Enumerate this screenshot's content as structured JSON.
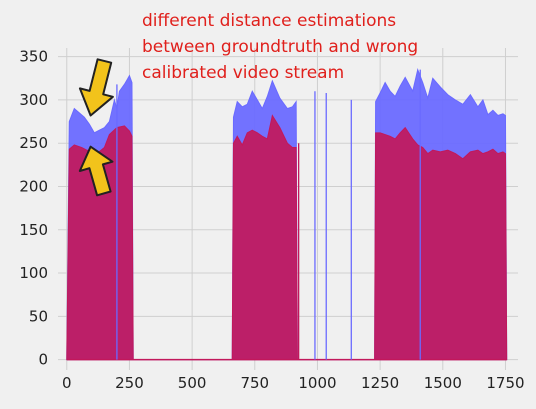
{
  "chart_data": {
    "type": "area",
    "title": "",
    "xlabel": "",
    "ylabel": "",
    "xlim": [
      -35,
      1800
    ],
    "ylim": [
      -12,
      360
    ],
    "xticks": [
      0,
      250,
      500,
      750,
      1000,
      1250,
      1500,
      1750
    ],
    "yticks": [
      0,
      50,
      100,
      150,
      200,
      250,
      300,
      350
    ],
    "grid": true,
    "legend": "none",
    "annotation": [
      "different distance estimations",
      "between groundtruth and wrong",
      "calibrated video stream"
    ],
    "series": [
      {
        "color": "#6a6aff",
        "x": [
          0,
          10,
          30,
          50,
          70,
          90,
          110,
          130,
          150,
          170,
          190,
          200,
          210,
          230,
          250,
          260,
          265,
          270,
          660,
          665,
          680,
          700,
          720,
          740,
          760,
          780,
          800,
          820,
          850,
          880,
          900,
          915,
          920,
          930,
          1228,
          1232,
          1250,
          1270,
          1290,
          1310,
          1330,
          1350,
          1380,
          1400,
          1420,
          1440,
          1460,
          1490,
          1520,
          1550,
          1580,
          1610,
          1640,
          1660,
          1680,
          1700,
          1720,
          1740,
          1750,
          1755
        ],
        "y": [
          0,
          275,
          290,
          285,
          280,
          272,
          262,
          265,
          268,
          275,
          300,
          290,
          310,
          318,
          328,
          320,
          0,
          0,
          0,
          280,
          298,
          292,
          295,
          310,
          300,
          290,
          304,
          322,
          302,
          290,
          292,
          298,
          0,
          0,
          0,
          298,
          308,
          320,
          310,
          304,
          316,
          326,
          310,
          335,
          320,
          302,
          325,
          315,
          306,
          300,
          295,
          306,
          292,
          300,
          283,
          288,
          282,
          284,
          282,
          0
        ]
      },
      {
        "color": "#c2185b",
        "x": [
          0,
          10,
          30,
          60,
          80,
          100,
          120,
          150,
          170,
          200,
          230,
          250,
          260,
          265,
          270,
          660,
          665,
          680,
          700,
          720,
          740,
          760,
          780,
          800,
          820,
          850,
          880,
          900,
          915,
          920,
          930,
          1228,
          1232,
          1250,
          1270,
          1290,
          1310,
          1330,
          1350,
          1380,
          1400,
          1420,
          1440,
          1460,
          1490,
          1520,
          1550,
          1580,
          1610,
          1640,
          1660,
          1680,
          1700,
          1720,
          1740,
          1750,
          1755
        ],
        "y": [
          0,
          243,
          248,
          245,
          242,
          240,
          238,
          245,
          260,
          268,
          270,
          264,
          258,
          0,
          0,
          0,
          250,
          258,
          248,
          262,
          265,
          262,
          258,
          255,
          282,
          268,
          250,
          245,
          245,
          0,
          0,
          0,
          262,
          262,
          260,
          258,
          255,
          262,
          268,
          255,
          248,
          245,
          238,
          242,
          240,
          242,
          238,
          232,
          240,
          242,
          238,
          240,
          243,
          238,
          240,
          238,
          0
        ]
      }
    ],
    "spikes": [
      {
        "color": "#6a6aff",
        "x": 200,
        "y": 318
      },
      {
        "color": "#6a6aff",
        "x": 990,
        "y": 310
      },
      {
        "color": "#6a6aff",
        "x": 1035,
        "y": 308
      },
      {
        "color": "#6a6aff",
        "x": 1135,
        "y": 300
      },
      {
        "color": "#6a6aff",
        "x": 1410,
        "y": 335
      },
      {
        "color": "#c2185b",
        "x": 925,
        "y": 250
      }
    ],
    "arrows": [
      {
        "tip_x": 95,
        "tip_y": 282,
        "tail_x": 150,
        "tail_y": 345,
        "color": "#f2c31b"
      },
      {
        "tip_x": 95,
        "tip_y": 246,
        "tail_x": 148,
        "tail_y": 192,
        "color": "#f2c31b"
      }
    ]
  }
}
